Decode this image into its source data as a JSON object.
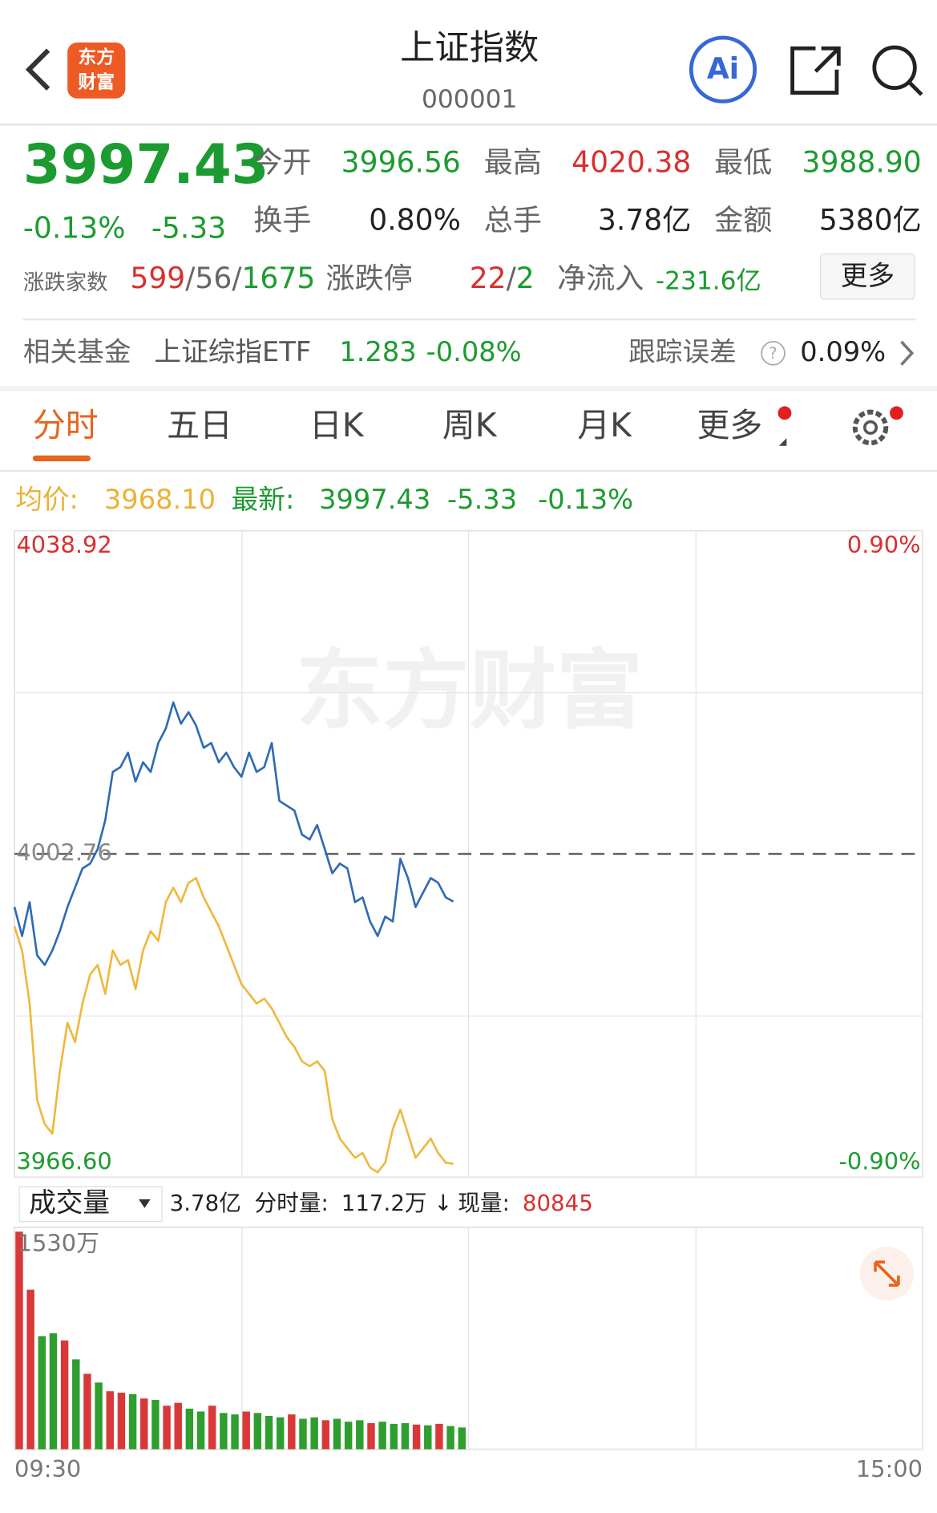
{
  "header": {
    "logo": [
      "东方",
      "财富"
    ],
    "title": "上证指数",
    "code": "000001",
    "ai": "Ai"
  },
  "quote": {
    "price": "3997.43",
    "change_pct": "-0.13%",
    "change": "-5.33",
    "fields": [
      {
        "label": "今开",
        "value": "3996.56"
      },
      {
        "label": "最高",
        "value": "4020.38"
      },
      {
        "label": "最低",
        "value": "3988.90"
      },
      {
        "label": "换手",
        "value": "0.80%"
      },
      {
        "label": "总手",
        "value": "3.78亿"
      },
      {
        "label": "金额",
        "value": "5380亿"
      }
    ],
    "breadth": {
      "label": "涨跌家数",
      "parts": [
        "599",
        "/",
        "56",
        "/",
        "1675"
      ]
    },
    "limit": {
      "label": "涨跌停",
      "parts": [
        "22",
        "/",
        "2"
      ]
    },
    "inflow": {
      "label": "净流入",
      "value": "-231.6亿"
    },
    "more": "更多"
  },
  "fund": {
    "label": "相关基金",
    "name": "上证综指ETF",
    "price": "1.283",
    "change": "-0.08%",
    "error_label": "跟踪误差",
    "help": "?",
    "error": "0.09%"
  },
  "tabs": [
    "分时",
    "五日",
    "日K",
    "周K",
    "月K",
    "更多"
  ],
  "latest": {
    "avg": "3968.10",
    "price": "3997.43",
    "change": "-5.33",
    "change_pct": "-0.13%"
  },
  "chart_data": [
    {
      "type": "line",
      "watermark": "东方财富",
      "x": [
        0,
        2,
        4,
        6,
        8,
        10,
        12,
        14,
        16,
        18,
        20,
        22,
        24,
        26,
        28,
        30,
        32,
        34,
        36,
        38,
        40,
        42,
        44,
        46,
        48,
        50,
        52,
        54,
        56,
        58,
        60,
        62,
        64,
        66,
        68,
        70,
        72,
        74,
        76,
        78,
        80,
        82,
        84,
        86,
        88,
        90,
        92,
        94,
        96,
        98,
        100,
        102,
        104,
        106,
        108,
        110,
        112,
        114,
        116
      ],
      "xlim": [
        0,
        240
      ],
      "ylim": [
        3966.6,
        4038.92
      ],
      "yticks": [
        {
          "value": 3966.6,
          "label": "3966.60"
        },
        4002.76,
        4038.92
      ],
      "y2lim": [
        -0.9,
        0.9
      ],
      "y2ticks": [
        {
          "value": -0.9,
          "label": "-0.90%"
        },
        {
          "value": 0.9,
          "label": "0.90%"
        }
      ],
      "series": [
        {
          "name": "最新:",
          "color": "#2f6bb3",
          "values": [
            3996.82,
            3993.59,
            3997.36,
            3991.43,
            3990.35,
            3991.97,
            3994.12,
            3996.82,
            3998.98,
            4001.14,
            4001.68,
            4003.3,
            4006.54,
            4011.93,
            4012.47,
            4014.09,
            4010.86,
            4013.01,
            4011.93,
            4015.17,
            4016.79,
            4019.71,
            4017.33,
            4018.63,
            4017.12,
            4014.63,
            4015.17,
            4013.01,
            4014.09,
            4012.47,
            4011.4,
            4014.09,
            4011.93,
            4012.47,
            4015.17,
            4008.7,
            4008.16,
            4007.62,
            4004.92,
            4004.38,
            4006.0,
            4003.3,
            4000.6,
            4001.68,
            4001.14,
            3997.36,
            3997.9,
            3995.2,
            3993.59,
            3995.74,
            3995.2,
            4002.22,
            4000.06,
            3996.82,
            3998.44,
            4000.06,
            3999.52,
            3997.9,
            3997.43
          ]
        },
        {
          "name": "均价:",
          "color": "#efb83c",
          "values": [
            3994.66,
            3991.97,
            3986.03,
            3975.24,
            3972.54,
            3971.46,
            3978.47,
            3983.87,
            3981.71,
            3986.03,
            3989.27,
            3990.35,
            3987.11,
            3991.97,
            3990.35,
            3990.89,
            3987.65,
            3991.97,
            3994.12,
            3993.05,
            3997.36,
            3998.98,
            3997.36,
            3999.52,
            4000.06,
            3997.9,
            3996.28,
            3994.66,
            3992.51,
            3990.35,
            3988.19,
            3987.11,
            3986.03,
            3986.57,
            3985.49,
            3983.87,
            3982.25,
            3981.17,
            3979.55,
            3979.01,
            3979.55,
            3978.47,
            3973.08,
            3970.92,
            3969.84,
            3968.76,
            3969.3,
            3967.68,
            3967.14,
            3968.22,
            3972.0,
            3974.16,
            3971.46,
            3968.76,
            3969.84,
            3970.92,
            3969.3,
            3968.22,
            3968.1
          ]
        }
      ]
    },
    {
      "type": "bar",
      "title": "成交量",
      "annotations": {
        "total": "3.78亿",
        "minute_label": "分时量:",
        "minute_value": "117.2万",
        "arrow": "↓",
        "current_label": "现量:",
        "current_value": "80845"
      },
      "x": [
        0,
        3,
        6,
        9,
        12,
        15,
        18,
        21,
        24,
        27,
        30,
        33,
        36,
        39,
        42,
        45,
        48,
        51,
        54,
        57,
        60,
        63,
        66,
        69,
        72,
        75,
        78,
        81,
        84,
        87,
        90,
        93,
        96,
        99,
        102,
        105,
        108,
        111,
        114,
        117
      ],
      "values": [
        1500,
        1100,
        780,
        800,
        750,
        620,
        520,
        460,
        400,
        390,
        380,
        350,
        340,
        300,
        320,
        280,
        260,
        300,
        250,
        240,
        260,
        250,
        230,
        220,
        240,
        210,
        220,
        200,
        210,
        190,
        200,
        180,
        190,
        175,
        180,
        170,
        165,
        175,
        160,
        150
      ],
      "bar_colors": [
        "#d93838",
        "#d93838",
        "#2e9e2e",
        "#2e9e2e",
        "#d93838",
        "#2e9e2e",
        "#d93838",
        "#2e9e2e",
        "#d93838",
        "#d93838",
        "#2e9e2e",
        "#d93838",
        "#2e9e2e",
        "#d93838",
        "#d93838",
        "#2e9e2e",
        "#2e9e2e",
        "#d93838",
        "#2e9e2e",
        "#2e9e2e",
        "#d93838",
        "#2e9e2e",
        "#2e9e2e",
        "#2e9e2e",
        "#d93838",
        "#2e9e2e",
        "#2e9e2e",
        "#d93838",
        "#2e9e2e",
        "#2e9e2e",
        "#2e9e2e",
        "#d93838",
        "#2e9e2e",
        "#2e9e2e",
        "#2e9e2e",
        "#d93838",
        "#2e9e2e",
        "#d93838",
        "#2e9e2e",
        "#2e9e2e"
      ],
      "xlim": [
        0,
        240
      ],
      "ylim": [
        0,
        1530
      ],
      "xticks": [
        {
          "value": 0,
          "label": "09:30"
        },
        {
          "value": 240,
          "label": "15:00"
        }
      ],
      "yticks": [
        {
          "value": 1530,
          "label": "1530万"
        }
      ]
    }
  ]
}
